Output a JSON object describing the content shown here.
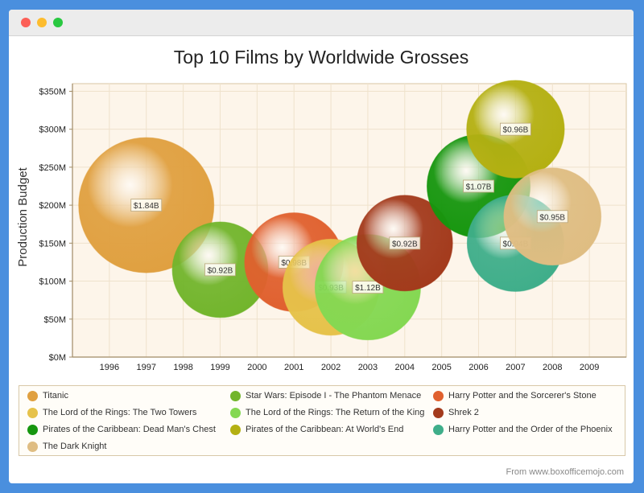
{
  "window": {
    "traffic_lights": [
      "close",
      "minimize",
      "maximize"
    ]
  },
  "chart_data": {
    "type": "bubble",
    "title": "Top 10 Films by Worldwide Grosses",
    "xlabel": "",
    "ylabel": "Production Budget",
    "xlim": [
      1995,
      2010
    ],
    "ylim": [
      0,
      360
    ],
    "x_ticks": [
      "1996",
      "1997",
      "1998",
      "1999",
      "2000",
      "2001",
      "2002",
      "2003",
      "2004",
      "2005",
      "2006",
      "2007",
      "2008",
      "2009"
    ],
    "y_ticks": [
      "$0M",
      "$50M",
      "$100M",
      "$150M",
      "$200M",
      "$250M",
      "$300M",
      "$350M"
    ],
    "grid": true,
    "legend_position": "bottom",
    "series": [
      {
        "name": "Titanic",
        "x": 1997,
        "y": 200,
        "size": 1.84,
        "label": "$1.84B",
        "color": "#e0a040"
      },
      {
        "name": "Star Wars: Episode I - The Phantom Menace",
        "x": 1999,
        "y": 115,
        "size": 0.92,
        "label": "$0.92B",
        "color": "#72b52c"
      },
      {
        "name": "Harry Potter and the Sorcerer's Stone",
        "x": 2001,
        "y": 125,
        "size": 0.98,
        "label": "$0.98B",
        "color": "#e0602e"
      },
      {
        "name": "The Lord of the Rings: The Two Towers",
        "x": 2002,
        "y": 92,
        "size": 0.93,
        "label": "$0.93B",
        "color": "#e6c24a"
      },
      {
        "name": "The Lord of the Rings: The Return of the King",
        "x": 2003,
        "y": 92,
        "size": 1.12,
        "label": "$1.12B",
        "color": "#84d852"
      },
      {
        "name": "Shrek 2",
        "x": 2004,
        "y": 150,
        "size": 0.92,
        "label": "$0.92B",
        "color": "#a33a1c"
      },
      {
        "name": "Pirates of the Caribbean: Dead Man's Chest",
        "x": 2006,
        "y": 225,
        "size": 1.07,
        "label": "$1.07B",
        "color": "#16960e"
      },
      {
        "name": "Pirates of the Caribbean: At World's End",
        "x": 2007,
        "y": 300,
        "size": 0.96,
        "label": "$0.96B",
        "color": "#b4b012"
      },
      {
        "name": "Harry Potter and the Order of the Phoenix",
        "x": 2007,
        "y": 150,
        "size": 0.94,
        "label": "$0.94B",
        "color": "#3fae8a"
      },
      {
        "name": "The Dark Knight",
        "x": 2008,
        "y": 185,
        "size": 0.95,
        "label": "$0.95B",
        "color": "#dfbd82"
      }
    ]
  },
  "legend_order": [
    0,
    1,
    2,
    3,
    4,
    5,
    6,
    7,
    8,
    9
  ],
  "source_note": "From www.boxofficemojo.com"
}
